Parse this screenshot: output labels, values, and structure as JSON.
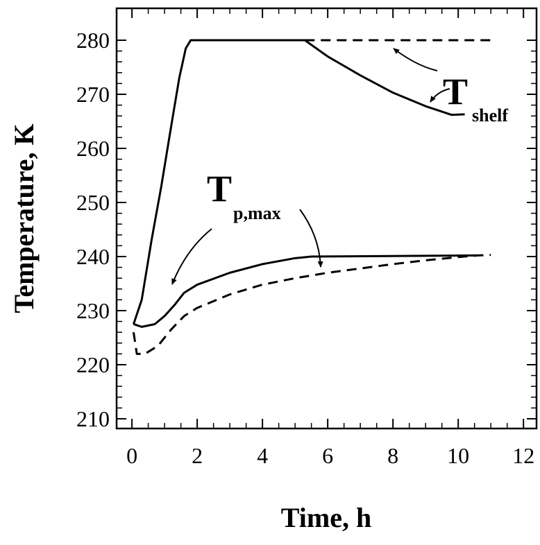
{
  "chart_data": {
    "type": "line",
    "xlabel": "Time, h",
    "ylabel": "Temperature, K",
    "xlim": [
      -0.47,
      12.4
    ],
    "ylim": [
      208.2,
      285.9
    ],
    "xticks": [
      0,
      2,
      4,
      6,
      8,
      10,
      12
    ],
    "yticks": [
      210,
      220,
      230,
      240,
      250,
      260,
      270,
      280
    ],
    "annotations": [
      {
        "text": "T",
        "sub": "shelf"
      },
      {
        "text": "T",
        "sub": "p,max"
      }
    ],
    "series": [
      {
        "color": "#000000",
        "style": "solid",
        "x": [
          0.05,
          0.3,
          0.6,
          0.9,
          1.2,
          1.45,
          1.65,
          1.8,
          5.3,
          6,
          7,
          8,
          9,
          9.8,
          10.2
        ],
        "values": [
          227.5,
          232,
          243,
          253,
          264,
          273,
          278.5,
          280,
          280,
          277,
          273.5,
          270.3,
          267.8,
          266.2,
          266.3
        ]
      },
      {
        "color": "#000000",
        "style": "dashed",
        "x": [
          5.3,
          11
        ],
        "values": [
          280,
          280
        ]
      },
      {
        "color": "#000000",
        "style": "solid",
        "x": [
          0.05,
          0.3,
          0.7,
          1,
          1.3,
          1.6,
          2,
          3,
          4,
          5,
          5.5,
          10.6
        ],
        "values": [
          227.5,
          227,
          227.5,
          229,
          231,
          233.3,
          234.8,
          237,
          238.6,
          239.7,
          240,
          240.2
        ]
      },
      {
        "color": "#000000",
        "style": "dashed",
        "x": [
          0.05,
          0.15,
          0.4,
          0.8,
          1.2,
          1.6,
          2,
          3,
          4,
          5,
          6,
          7,
          8,
          9,
          10,
          10.6,
          11
        ],
        "values": [
          226,
          222,
          222,
          223.5,
          226.5,
          229,
          230.5,
          233,
          234.8,
          236,
          237,
          237.8,
          238.6,
          239.3,
          239.9,
          240.2,
          240.3
        ]
      }
    ]
  }
}
